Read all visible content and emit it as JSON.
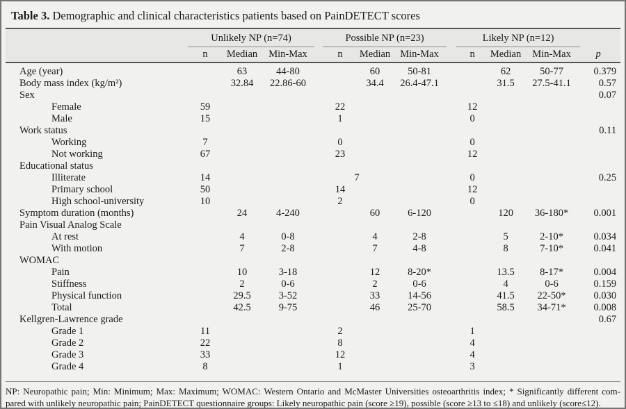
{
  "colors": {
    "page_bg": "#f1f1ef",
    "band_bg": "#e7e7e5",
    "border_col": "#757575",
    "rule_dark": "#555555",
    "rule_mid": "#8a8a8a",
    "text_col": "#1a1a1a"
  },
  "title": {
    "label": "Table 3.",
    "text": " Demographic and clinical characteristics patients based on PainDETECT scores"
  },
  "columns": {
    "groups": [
      {
        "label": "Unlikely NP (n=74)"
      },
      {
        "label": "Possible NP (n=23)"
      },
      {
        "label": "Likely NP (n=12)"
      }
    ],
    "subheaders": [
      "n",
      "Median",
      "Min-Max"
    ],
    "p_label": "p"
  },
  "rows": [
    {
      "label": "Age (year)",
      "indent": false,
      "cells": [
        "",
        "63",
        "44-80",
        "",
        "60",
        "50-81",
        "",
        "62",
        "50-77",
        "0.379"
      ]
    },
    {
      "label": "Body mass index (kg/m²)",
      "indent": false,
      "cells": [
        "",
        "32.84",
        "22.86-60",
        "",
        "34.4",
        "26.4-47.1",
        "",
        "31.5",
        "27.5-41.1",
        "0.57"
      ]
    },
    {
      "label": "Sex",
      "indent": false,
      "cells": [
        "",
        "",
        "",
        "",
        "",
        "",
        "",
        "",
        "",
        "0.07"
      ]
    },
    {
      "label": "Female",
      "indent": true,
      "cells": [
        "59",
        "",
        "",
        "22",
        "",
        "",
        "12",
        "",
        "",
        ""
      ]
    },
    {
      "label": "Male",
      "indent": true,
      "cells": [
        "15",
        "",
        "",
        "1",
        "",
        "",
        "0",
        "",
        "",
        ""
      ]
    },
    {
      "label": "Work status",
      "indent": false,
      "cells": [
        "",
        "",
        "",
        "",
        "",
        "",
        "",
        "",
        "",
        "0.11"
      ]
    },
    {
      "label": "Working",
      "indent": true,
      "cells": [
        "7",
        "",
        "",
        "0",
        "",
        "",
        "0",
        "",
        "",
        ""
      ]
    },
    {
      "label": "Not working",
      "indent": true,
      "cells": [
        "67",
        "",
        "",
        "23",
        "",
        "",
        "12",
        "",
        "",
        ""
      ]
    },
    {
      "label": "Educational status",
      "indent": false,
      "cells": [
        "",
        "",
        "",
        "",
        "",
        "",
        "",
        "",
        "",
        ""
      ]
    },
    {
      "label": "Illiterate",
      "indent": true,
      "cells": [
        "14",
        "",
        "",
        "7",
        "",
        "",
        "0",
        "",
        "",
        "0.25"
      ]
    },
    {
      "label": "Primary school",
      "indent": true,
      "cells": [
        "50",
        "",
        "",
        "14",
        "",
        "",
        "12",
        "",
        "",
        ""
      ]
    },
    {
      "label": "High school-university",
      "indent": true,
      "cells": [
        "10",
        "",
        "",
        "2",
        "",
        "",
        "0",
        "",
        "",
        ""
      ]
    },
    {
      "label": "Symptom duration (months)",
      "indent": false,
      "cells": [
        "",
        "24",
        "4-240",
        "",
        "60",
        "6-120",
        "",
        "120",
        "36-180*",
        "0.001"
      ]
    },
    {
      "label": "Pain Visual Analog Scale",
      "indent": false,
      "cells": [
        "",
        "",
        "",
        "",
        "",
        "",
        "",
        "",
        "",
        ""
      ]
    },
    {
      "label": "At rest",
      "indent": true,
      "cells": [
        "",
        "4",
        "0-8",
        "",
        "4",
        "2-8",
        "",
        "5",
        "2-10*",
        "0.034"
      ]
    },
    {
      "label": "With motion",
      "indent": true,
      "cells": [
        "",
        "7",
        "2-8",
        "",
        "7",
        "4-8",
        "",
        "8",
        "7-10*",
        "0.041"
      ]
    },
    {
      "label": "WOMAC",
      "indent": false,
      "cells": [
        "",
        "",
        "",
        "",
        "",
        "",
        "",
        "",
        "",
        ""
      ]
    },
    {
      "label": "Pain",
      "indent": true,
      "cells": [
        "",
        "10",
        "3-18",
        "",
        "12",
        "8-20*",
        "",
        "13.5",
        "8-17*",
        "0.004"
      ]
    },
    {
      "label": "Stiffness",
      "indent": true,
      "cells": [
        "",
        "2",
        "0-6",
        "",
        "2",
        "0-6",
        "",
        "4",
        "0-6",
        "0.159"
      ]
    },
    {
      "label": "Physical function",
      "indent": true,
      "cells": [
        "",
        "29.5",
        "3-52",
        "",
        "33",
        "14-56",
        "",
        "41.5",
        "22-50*",
        "0.030"
      ]
    },
    {
      "label": "Total",
      "indent": true,
      "cells": [
        "",
        "42.5",
        "9-75",
        "",
        "46",
        "25-70",
        "",
        "58.5",
        "34-71*",
        "0.008"
      ]
    },
    {
      "label": "Kellgren-Lawrence grade",
      "indent": false,
      "cells": [
        "",
        "",
        "",
        "",
        "",
        "",
        "",
        "",
        "",
        "0.67"
      ]
    },
    {
      "label": "Grade 1",
      "indent": true,
      "cells": [
        "11",
        "",
        "",
        "2",
        "",
        "",
        "1",
        "",
        "",
        ""
      ]
    },
    {
      "label": "Grade 2",
      "indent": true,
      "cells": [
        "22",
        "",
        "",
        "8",
        "",
        "",
        "4",
        "",
        "",
        ""
      ]
    },
    {
      "label": "Grade 3",
      "indent": true,
      "cells": [
        "33",
        "",
        "",
        "12",
        "",
        "",
        "4",
        "",
        "",
        ""
      ]
    },
    {
      "label": "Grade 4",
      "indent": true,
      "cells": [
        "8",
        "",
        "",
        "1",
        "",
        "",
        "3",
        "",
        "",
        ""
      ]
    }
  ],
  "footnote": {
    "lines": [
      "NP: Neuropathic pain; Min: Minimum; Max: Maximum; WOMAC: Western Ontario and McMaster Universities osteoarthritis index; * Significantly different com-",
      "pared with unlikely neuropathic pain; PainDETECT questionnaire groups: Likely neuropathic pain (score ≥19), possible (score ≥13 to ≤18) and unlikely (score≤12)."
    ]
  }
}
